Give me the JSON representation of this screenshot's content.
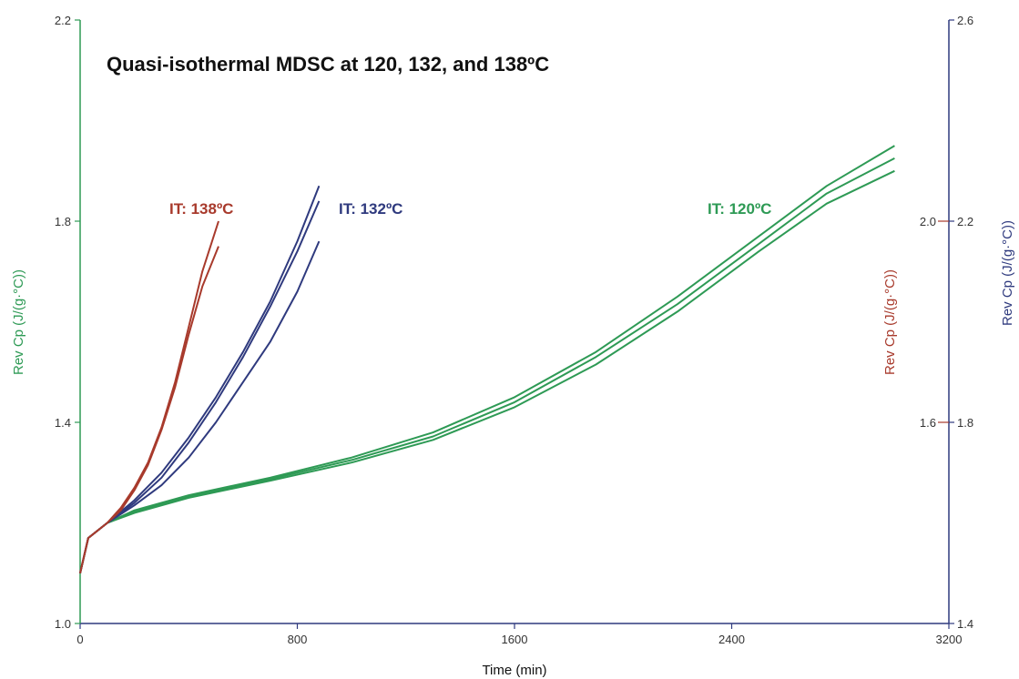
{
  "chart_data": {
    "type": "line",
    "title": "Quasi-isothermal MDSC at 120, 132, and 138ºC",
    "xlabel": "Time (min)",
    "xlim": [
      0,
      3200
    ],
    "x_ticks": [
      "0",
      "800",
      "1600",
      "2400",
      "3200"
    ],
    "y_left": {
      "label": "Rev Cp (J/(g·°C))",
      "color": "#2e9a55",
      "lim": [
        1.0,
        2.2
      ],
      "ticks": [
        "1.0",
        "1.4",
        "1.8",
        "2.2"
      ]
    },
    "y_right_inner": {
      "label": "Rev Cp (J/(g·°C))",
      "color": "#a83a2c",
      "ticks": [
        "1.6",
        "2.0"
      ]
    },
    "y_right_outer": {
      "label": "Rev Cp (J/(g·°C))",
      "color": "#2f3a7e",
      "lim": [
        1.4,
        2.6
      ],
      "ticks": [
        "1.4",
        "1.8",
        "2.2",
        "2.6"
      ]
    },
    "series": [
      {
        "label": "IT: 120ºC",
        "color": "#2e9a55",
        "axis": "left",
        "runs": [
          {
            "x": [
              0,
              30,
              100,
              200,
              400,
              700,
              1000,
              1300,
              1600,
              1900,
              2200,
              2500,
              2750,
              3000
            ],
            "y": [
              1.1,
              1.17,
              1.2,
              1.225,
              1.255,
              1.29,
              1.33,
              1.38,
              1.45,
              1.54,
              1.65,
              1.77,
              1.87,
              1.95
            ]
          },
          {
            "x": [
              0,
              30,
              100,
              200,
              400,
              700,
              1000,
              1300,
              1600,
              1900,
              2200,
              2500,
              2750,
              3000
            ],
            "y": [
              1.1,
              1.17,
              1.2,
              1.223,
              1.252,
              1.287,
              1.325,
              1.372,
              1.44,
              1.53,
              1.635,
              1.755,
              1.855,
              1.925
            ]
          },
          {
            "x": [
              0,
              30,
              100,
              200,
              400,
              700,
              1000,
              1300,
              1600,
              1900,
              2200,
              2500,
              2750,
              3000
            ],
            "y": [
              1.1,
              1.17,
              1.2,
              1.22,
              1.25,
              1.284,
              1.32,
              1.365,
              1.43,
              1.515,
              1.62,
              1.74,
              1.835,
              1.9
            ]
          }
        ]
      },
      {
        "label": "IT: 132ºC",
        "color": "#2f3a7e",
        "axis": "left",
        "runs": [
          {
            "x": [
              0,
              30,
              100,
              200,
              300,
              400,
              500,
              600,
              700,
              800,
              880
            ],
            "y": [
              1.1,
              1.17,
              1.2,
              1.245,
              1.3,
              1.37,
              1.45,
              1.54,
              1.64,
              1.76,
              1.87
            ]
          },
          {
            "x": [
              0,
              30,
              100,
              200,
              300,
              400,
              500,
              600,
              700,
              800,
              880
            ],
            "y": [
              1.1,
              1.17,
              1.2,
              1.24,
              1.29,
              1.36,
              1.44,
              1.53,
              1.63,
              1.74,
              1.84
            ]
          },
          {
            "x": [
              0,
              30,
              100,
              200,
              300,
              400,
              500,
              600,
              700,
              800,
              880
            ],
            "y": [
              1.1,
              1.17,
              1.2,
              1.235,
              1.275,
              1.33,
              1.4,
              1.48,
              1.56,
              1.66,
              1.76
            ]
          }
        ]
      },
      {
        "label": "IT: 138ºC",
        "color": "#a83a2c",
        "axis": "left",
        "runs": [
          {
            "x": [
              0,
              30,
              100,
              150,
              200,
              250,
              300,
              350,
              400,
              450,
              510
            ],
            "y": [
              1.1,
              1.17,
              1.2,
              1.23,
              1.27,
              1.32,
              1.39,
              1.48,
              1.59,
              1.7,
              1.8
            ]
          },
          {
            "x": [
              0,
              30,
              100,
              150,
              200,
              250,
              300,
              350,
              400,
              450,
              510
            ],
            "y": [
              1.1,
              1.17,
              1.2,
              1.225,
              1.265,
              1.315,
              1.385,
              1.47,
              1.575,
              1.67,
              1.75
            ]
          }
        ]
      }
    ]
  }
}
